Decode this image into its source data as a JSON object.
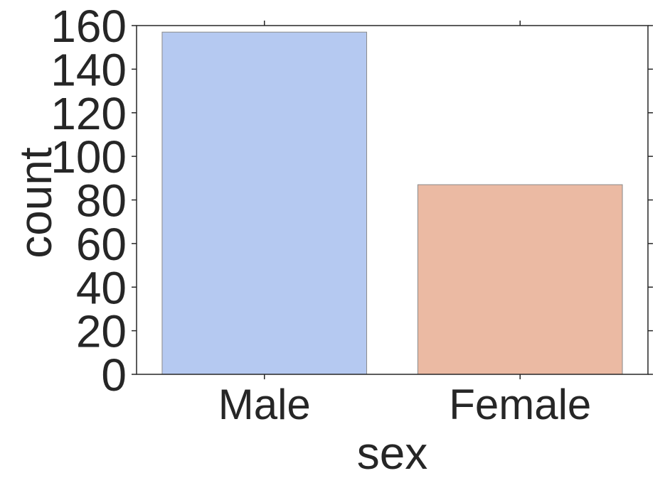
{
  "chart_data": {
    "type": "bar",
    "title": "",
    "xlabel": "sex",
    "ylabel": "count",
    "categories": [
      "Male",
      "Female"
    ],
    "values": [
      157,
      87
    ],
    "ylim": [
      0,
      160
    ],
    "yticks": [
      0,
      20,
      40,
      60,
      80,
      100,
      120,
      140,
      160
    ],
    "colors": [
      "#b5c9f1",
      "#ebbaa3"
    ],
    "edge_color": "#8a8a8a",
    "grid": false,
    "legend": "none"
  }
}
